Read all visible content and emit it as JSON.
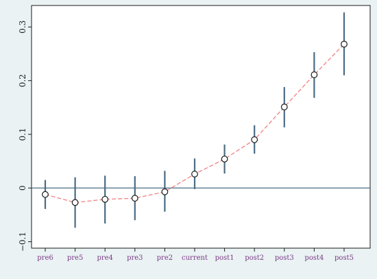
{
  "chart_data": {
    "type": "line",
    "title": "",
    "xlabel": "",
    "ylabel": "",
    "categories": [
      "pre6",
      "pre5",
      "pre4",
      "pre3",
      "pre2",
      "current",
      "post1",
      "post2",
      "post3",
      "post4",
      "post5"
    ],
    "series": [
      {
        "values": [
          -0.012,
          -0.027,
          -0.021,
          -0.019,
          -0.007,
          0.026,
          0.054,
          0.09,
          0.151,
          0.211,
          0.268
        ],
        "ci_lower": [
          -0.039,
          -0.074,
          -0.066,
          -0.06,
          -0.044,
          -0.002,
          0.027,
          0.064,
          0.113,
          0.168,
          0.21
        ],
        "ci_upper": [
          0.015,
          0.02,
          0.023,
          0.022,
          0.032,
          0.055,
          0.081,
          0.117,
          0.188,
          0.253,
          0.327
        ]
      }
    ],
    "yticks": [
      -0.1,
      0,
      0.1,
      0.2,
      0.3
    ],
    "ytick_labels": [
      "−0.1",
      "0",
      "0.1",
      "0.2",
      "0.3"
    ],
    "ylim": [
      -0.112,
      0.34
    ],
    "reference_line_y": 0,
    "grid": false,
    "legend": "none",
    "colors": {
      "background": "#eaf2f3",
      "plot_background": "#ffffff",
      "ci_bars": "#4a6b83",
      "trend_line": "#f08080",
      "marker_edge": "#1a1a1a",
      "marker_fill": "#ffffff",
      "reference_line": "#4a6b83",
      "xtick_label": "#7b3a86",
      "ytick_label": "#1a1a1a"
    }
  }
}
